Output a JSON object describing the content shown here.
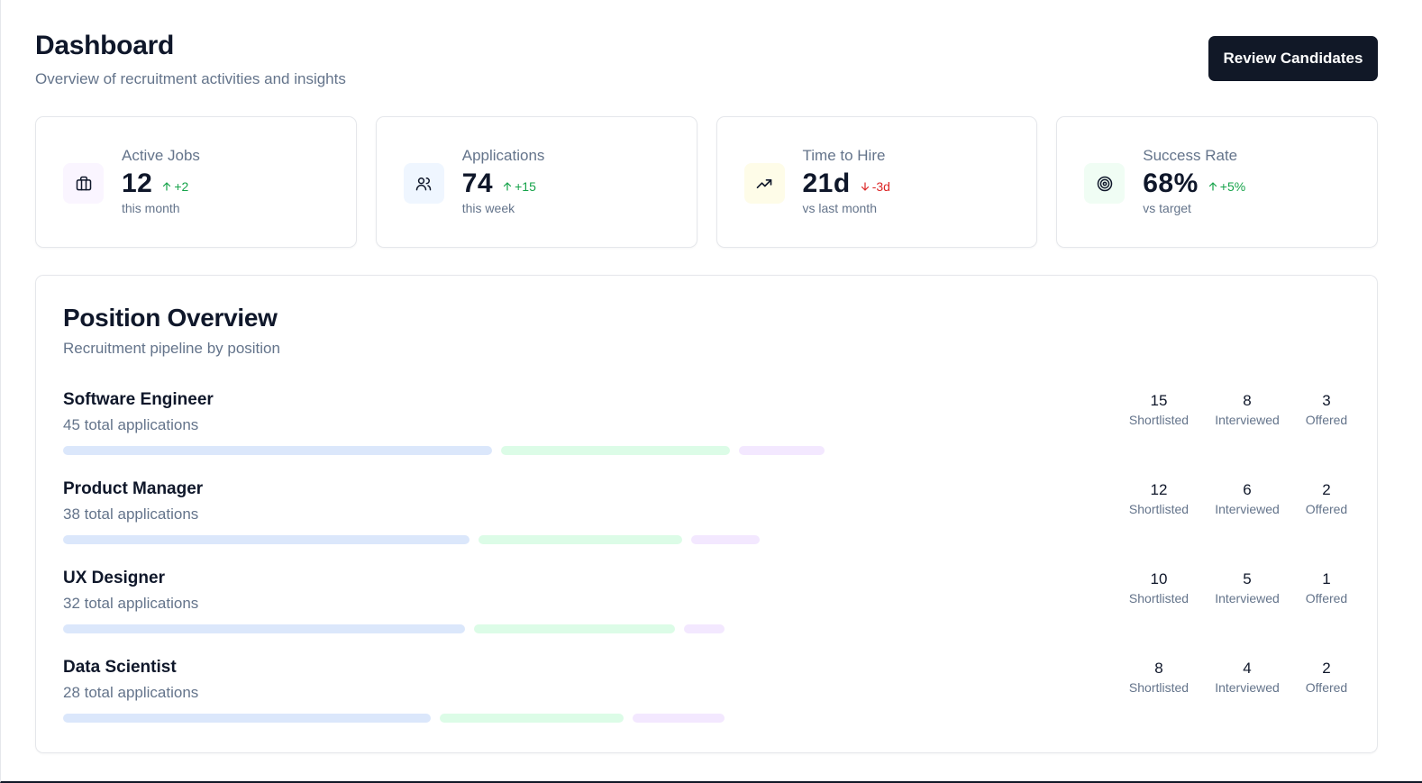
{
  "header": {
    "title": "Dashboard",
    "subtitle": "Overview of recruitment activities and insights",
    "review_button": "Review Candidates"
  },
  "stats": [
    {
      "label": "Active Jobs",
      "value": "12",
      "delta": "+2",
      "direction": "up",
      "note": "this month",
      "icon": "briefcase-icon",
      "icon_bg": "#faf5ff"
    },
    {
      "label": "Applications",
      "value": "74",
      "delta": "+15",
      "direction": "up",
      "note": "this week",
      "icon": "users-icon",
      "icon_bg": "#eff6ff"
    },
    {
      "label": "Time to Hire",
      "value": "21d",
      "delta": "-3d",
      "direction": "down",
      "note": "vs last month",
      "icon": "trending-up-icon",
      "icon_bg": "#fefce8"
    },
    {
      "label": "Success Rate",
      "value": "68%",
      "delta": "+5%",
      "direction": "up",
      "note": "vs target",
      "icon": "target-icon",
      "icon_bg": "#f0fdf4"
    }
  ],
  "overview": {
    "title": "Position Overview",
    "subtitle": "Recruitment pipeline by position",
    "metric_labels": {
      "shortlisted": "Shortlisted",
      "interviewed": "Interviewed",
      "offered": "Offered"
    },
    "positions": [
      {
        "name": "Software Engineer",
        "total": "45 total applications",
        "shortlisted": "15",
        "interviewed": "8",
        "offered": "3"
      },
      {
        "name": "Product Manager",
        "total": "38 total applications",
        "shortlisted": "12",
        "interviewed": "6",
        "offered": "2"
      },
      {
        "name": "UX Designer",
        "total": "32 total applications",
        "shortlisted": "10",
        "interviewed": "5",
        "offered": "1"
      },
      {
        "name": "Data Scientist",
        "total": "28 total applications",
        "shortlisted": "8",
        "interviewed": "4",
        "offered": "2"
      }
    ]
  },
  "colors": {
    "primary_button": "#111827",
    "positive": "#16a34a",
    "negative": "#dc2626",
    "bar_shortlisted": "#dbe7fb",
    "bar_interviewed": "#dcfce7",
    "bar_offered": "#f3e8ff"
  }
}
